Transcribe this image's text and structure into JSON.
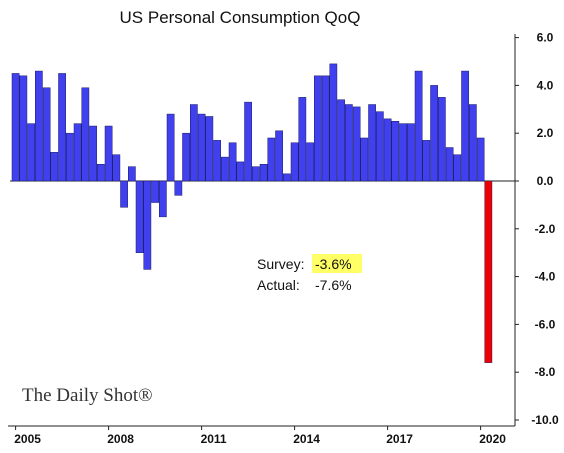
{
  "chart_data": {
    "type": "bar",
    "title": "US Personal Consumption QoQ",
    "yunit_suffix": "",
    "ylim": [
      -10.0,
      6.0
    ],
    "yticks": [
      "6.0",
      "4.0",
      "2.0",
      "0.0",
      "-2.0",
      "-4.0",
      "-6.0",
      "-8.0",
      "-10.0"
    ],
    "xtick_labels": [
      "2005",
      "2008",
      "2011",
      "2014",
      "2017",
      "2020"
    ],
    "x_start": "2005-Q1",
    "x_end": "2020-Q1",
    "grid": false,
    "colors": {
      "bar": "#4040ee",
      "highlight": "#ee0000",
      "bar_edge": "#1a1a60",
      "survey_highlight": "#ffff66"
    },
    "values": [
      4.5,
      4.4,
      2.4,
      4.6,
      3.9,
      1.2,
      4.5,
      2.0,
      2.4,
      3.9,
      2.3,
      0.7,
      2.3,
      1.1,
      -1.1,
      0.6,
      -3.0,
      -3.7,
      -0.9,
      -1.5,
      2.8,
      -0.6,
      2.0,
      3.2,
      2.8,
      2.7,
      1.7,
      1.0,
      1.6,
      0.8,
      3.3,
      0.6,
      0.7,
      1.8,
      2.1,
      0.3,
      1.6,
      3.5,
      1.6,
      4.4,
      4.4,
      4.9,
      3.4,
      3.2,
      3.1,
      1.8,
      3.2,
      2.9,
      2.6,
      2.5,
      2.4,
      2.4,
      4.6,
      1.7,
      4.0,
      3.5,
      1.4,
      1.1,
      4.6,
      3.2,
      1.8,
      -7.6
    ],
    "highlight_index": 61,
    "annotation": {
      "survey_label": "Survey:",
      "survey_value": "-3.6%",
      "actual_label": "Actual:",
      "actual_value": "-7.6%"
    }
  },
  "branding": {
    "logo": "The Daily Shot®"
  }
}
